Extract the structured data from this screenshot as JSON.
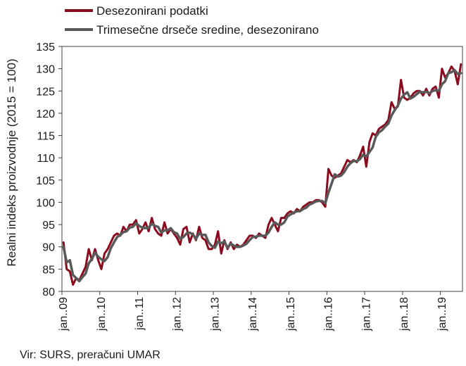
{
  "chart_data": {
    "type": "line",
    "ylabel": "Realni indeks proizvodnje (2015 = 100)",
    "xlabel": "",
    "ylim": [
      80,
      135
    ],
    "yticks": [
      80,
      85,
      90,
      95,
      100,
      105,
      110,
      115,
      120,
      125,
      130,
      135
    ],
    "x_start": "2009-01",
    "x_end": "2019-07",
    "xticks": [
      "jan..09",
      "jan..10",
      "jan..11",
      "jan..12",
      "jan..13",
      "jan..14",
      "jan..15",
      "jan..16",
      "jan..17",
      "jan..18",
      "jan..19"
    ],
    "grid": false,
    "legend_position": "top",
    "source": "Vir: SURS, preračuni UMAR",
    "colors": {
      "series1": "#8b0a1e",
      "series2": "#595959"
    },
    "series": [
      {
        "name": "Desezonirani podatki",
        "values": [
          91.0,
          85.0,
          84.5,
          81.5,
          83.0,
          82.5,
          84.0,
          85.5,
          89.5,
          87.0,
          89.5,
          87.0,
          85.0,
          88.5,
          89.5,
          91.0,
          92.5,
          93.0,
          92.5,
          94.5,
          93.5,
          95.0,
          95.0,
          96.0,
          93.0,
          94.0,
          95.5,
          93.5,
          96.5,
          94.0,
          93.0,
          92.5,
          95.5,
          93.0,
          94.0,
          93.0,
          92.0,
          90.5,
          94.0,
          94.5,
          91.0,
          93.0,
          91.5,
          94.5,
          92.0,
          91.5,
          89.5,
          89.5,
          90.5,
          93.5,
          88.5,
          91.5,
          89.5,
          91.0,
          89.5,
          90.5,
          90.0,
          90.5,
          91.5,
          92.5,
          92.5,
          92.0,
          93.0,
          92.5,
          92.0,
          95.0,
          96.5,
          95.0,
          93.5,
          96.5,
          96.5,
          97.5,
          98.0,
          97.5,
          98.5,
          98.0,
          99.0,
          99.5,
          100.0,
          100.0,
          100.5,
          100.5,
          100.0,
          99.0,
          107.5,
          106.0,
          105.5,
          106.0,
          106.5,
          108.0,
          109.5,
          109.0,
          109.5,
          109.0,
          110.5,
          112.5,
          108.0,
          113.5,
          115.5,
          115.0,
          116.5,
          117.0,
          117.5,
          118.5,
          122.5,
          121.0,
          121.5,
          127.5,
          123.5,
          123.0,
          123.5,
          124.5,
          125.0,
          125.0,
          124.0,
          125.5,
          124.0,
          125.5,
          126.0,
          123.5,
          130.0,
          128.0,
          129.0,
          130.5,
          129.5,
          126.5,
          131.0
        ]
      },
      {
        "name": "Trimesečne drseče sredine, desezonirano",
        "values": [
          90.0,
          86.5,
          87.0,
          83.7,
          83.0,
          82.3,
          83.2,
          84.0,
          86.3,
          87.3,
          88.7,
          87.8,
          87.2,
          86.8,
          87.7,
          89.7,
          91.0,
          92.2,
          92.7,
          93.3,
          93.5,
          94.3,
          94.5,
          95.3,
          94.7,
          94.3,
          94.2,
          94.3,
          95.2,
          94.7,
          94.5,
          93.2,
          93.7,
          93.7,
          94.2,
          93.3,
          93.0,
          91.8,
          92.2,
          93.0,
          93.2,
          92.8,
          91.8,
          93.0,
          92.7,
          92.7,
          91.0,
          90.2,
          89.8,
          91.2,
          90.8,
          91.2,
          89.8,
          90.7,
          90.3,
          90.0,
          90.0,
          90.3,
          90.7,
          91.5,
          92.2,
          92.3,
          92.5,
          92.5,
          92.5,
          93.2,
          94.5,
          95.5,
          95.0,
          95.0,
          95.5,
          96.8,
          97.3,
          97.7,
          98.0,
          98.0,
          98.5,
          98.8,
          99.5,
          99.8,
          100.2,
          100.3,
          100.3,
          99.8,
          102.2,
          104.2,
          106.3,
          105.8,
          106.0,
          106.8,
          108.0,
          108.8,
          109.3,
          109.2,
          109.7,
          110.7,
          110.3,
          111.3,
          112.3,
          114.7,
          115.7,
          116.2,
          117.0,
          117.7,
          119.5,
          120.7,
          121.7,
          123.3,
          124.2,
          124.7,
          123.3,
          123.7,
          124.3,
          124.8,
          124.7,
          124.8,
          124.5,
          125.0,
          125.2,
          125.0,
          126.5,
          127.2,
          129.0,
          129.2,
          129.7,
          128.8,
          129.0
        ]
      }
    ]
  }
}
